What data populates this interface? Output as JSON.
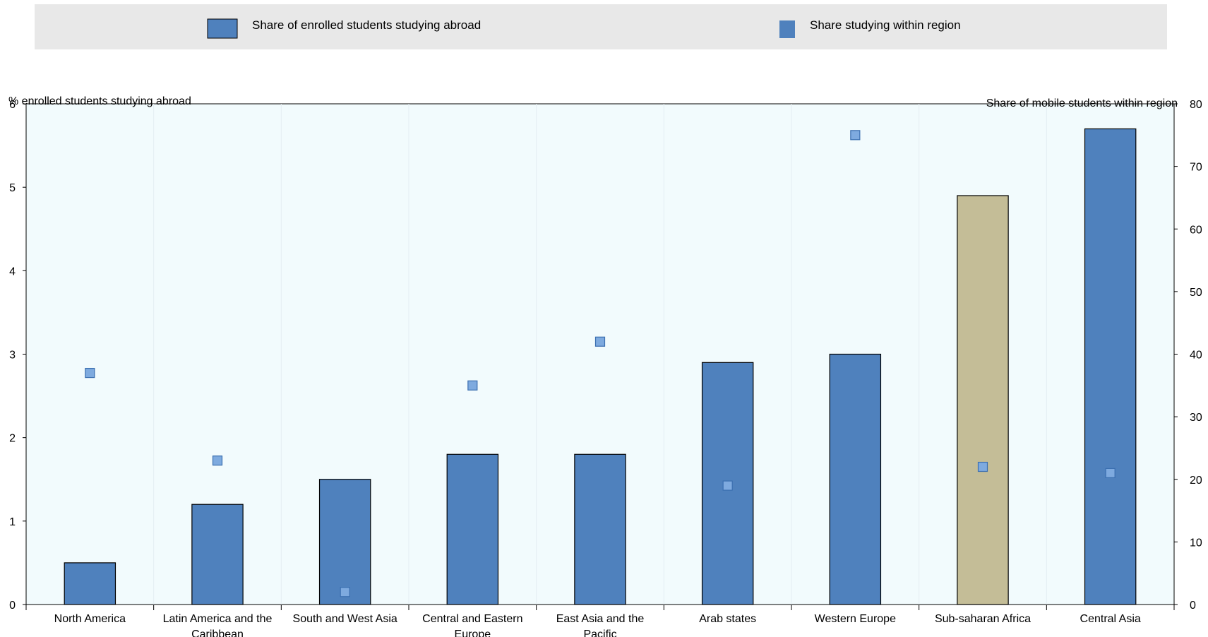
{
  "chart_data": {
    "type": "bar",
    "categories": [
      [
        "North America"
      ],
      [
        "Latin America and the",
        "Caribbean"
      ],
      [
        "South and West Asia"
      ],
      [
        "Central and Eastern",
        "Europe"
      ],
      [
        "East Asia and the",
        "Pacific"
      ],
      [
        "Arab states"
      ],
      [
        "Western Europe"
      ],
      [
        "Sub-saharan Africa"
      ],
      [
        "Central Asia"
      ]
    ],
    "series": [
      {
        "name": "Share of enrolled students studying abroad",
        "axis": "left",
        "type": "bar",
        "values": [
          0.5,
          1.2,
          1.5,
          1.8,
          1.8,
          2.9,
          3.0,
          4.9,
          5.7
        ],
        "color": "#4f81bd",
        "highlight_index": 7,
        "highlight_color": "#c4bd97"
      },
      {
        "name": "Share studying within region",
        "axis": "right",
        "type": "marker",
        "values": [
          37,
          23,
          2,
          35,
          42,
          19,
          75,
          22,
          21
        ],
        "color": "#7eaadf"
      }
    ],
    "left_axis": {
      "label": "% enrolled students studying abroad",
      "range": [
        0,
        6
      ],
      "ticks": [
        0,
        1,
        2,
        3,
        4,
        5,
        6
      ]
    },
    "right_axis": {
      "label": "Share of mobile students within region",
      "range": [
        0,
        80
      ],
      "ticks": [
        0,
        10,
        20,
        30,
        40,
        50,
        60,
        70,
        80
      ]
    },
    "plot_background": "#f2fbfd",
    "legend_background": "#e8e8e8",
    "legend_position": "top",
    "grid": true
  }
}
